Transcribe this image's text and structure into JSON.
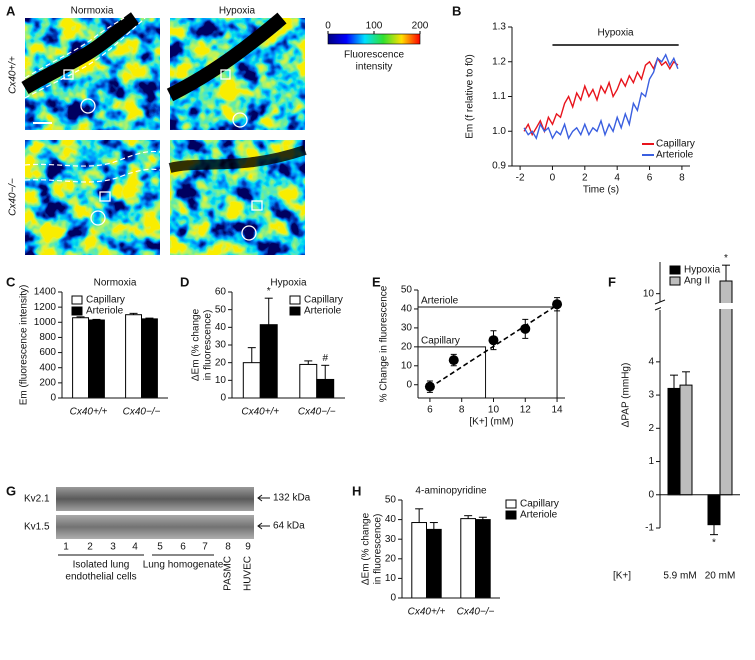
{
  "panel_labels": [
    "A",
    "B",
    "C",
    "D",
    "E",
    "F",
    "G",
    "H"
  ],
  "panel_a": {
    "columns": [
      "Normoxia",
      "Hypoxia"
    ],
    "rows": [
      "Cx40+/+",
      "Cx40−/−"
    ],
    "colorbar": {
      "label": [
        "Fluorescence",
        "intensity"
      ],
      "lim": [
        0,
        200
      ],
      "ticks": [
        0,
        100,
        200
      ]
    }
  },
  "panel_g": {
    "bands": [
      {
        "name": "Kv2.1",
        "size": "132 kDa"
      },
      {
        "name": "Kv1.5",
        "size": "64 kDa"
      }
    ],
    "lanes": [
      "1",
      "2",
      "3",
      "4",
      "5",
      "6",
      "7",
      "8",
      "9"
    ],
    "groups": [
      [
        "Isolated lung",
        "endothelial cells"
      ],
      [
        "Lung homogenate"
      ],
      [
        "PASMC"
      ],
      [
        "HUVEC"
      ]
    ]
  },
  "chart_data": [
    {
      "type": "line",
      "xlabel": "Time (s)",
      "ylabel": "Em (f relative to f0)",
      "annotation": {
        "text": "Hypoxia",
        "x_start": 0,
        "x_end": 7.8
      },
      "x": [
        -1.75,
        -1.5,
        -1.25,
        -1.0,
        -0.75,
        -0.5,
        -0.25,
        0,
        0.25,
        0.5,
        0.75,
        1.0,
        1.25,
        1.5,
        1.75,
        2.0,
        2.25,
        2.5,
        2.75,
        3.0,
        3.25,
        3.5,
        3.75,
        4.0,
        4.25,
        4.5,
        4.75,
        5.0,
        5.25,
        5.5,
        5.75,
        6.0,
        6.25,
        6.5,
        6.75,
        7.0,
        7.25,
        7.5,
        7.75
      ],
      "series": [
        {
          "name": "Capillary",
          "color": "#e8141c",
          "values": [
            1.0,
            1.02,
            0.99,
            1.01,
            1.03,
            1.0,
            1.04,
            1.02,
            1.05,
            1.04,
            1.08,
            1.1,
            1.07,
            1.11,
            1.09,
            1.13,
            1.1,
            1.12,
            1.09,
            1.13,
            1.11,
            1.14,
            1.1,
            1.12,
            1.15,
            1.13,
            1.16,
            1.14,
            1.17,
            1.15,
            1.19,
            1.2,
            1.18,
            1.21,
            1.19,
            1.2,
            1.18,
            1.2,
            1.19
          ]
        },
        {
          "name": "Arteriole",
          "color": "#3a5fe0",
          "values": [
            1.01,
            0.99,
            1.0,
            0.98,
            1.02,
            1.0,
            1.01,
            0.98,
            1.0,
            0.99,
            1.02,
            0.98,
            1.0,
            1.01,
            0.99,
            1.02,
            0.99,
            1.01,
            1.0,
            1.03,
            0.99,
            1.02,
            1.0,
            1.04,
            1.01,
            1.05,
            1.02,
            1.08,
            1.06,
            1.11,
            1.1,
            1.15,
            1.17,
            1.21,
            1.2,
            1.22,
            1.19,
            1.21,
            1.18
          ]
        }
      ],
      "xlim": [
        -2.5,
        8.5
      ],
      "xticks": [
        -2,
        0,
        2,
        4,
        6,
        8
      ],
      "ylim": [
        0.9,
        1.3
      ],
      "yticks": [
        0.9,
        {
          "value": 1,
          "label": "1.0"
        },
        1.1,
        1.2,
        1.3
      ],
      "legend": "lower right"
    },
    {
      "type": "bar",
      "title": "Normoxia",
      "ylabel": "Em (fluorescence intensity)",
      "categories": [
        "Cx40+/+",
        "Cx40−/−"
      ],
      "series": [
        {
          "name": "Capillary",
          "color": "#ffffff",
          "values": [
            1060,
            1100
          ],
          "errors": [
            12,
            18
          ]
        },
        {
          "name": "Arteriole",
          "color": "#000000",
          "values": [
            1030,
            1045
          ],
          "errors": [
            8,
            10
          ]
        }
      ],
      "ylim": [
        0,
        1400
      ],
      "yticks": [
        0,
        200,
        400,
        600,
        800,
        1000,
        1200,
        1400
      ],
      "legend": "upper left"
    },
    {
      "type": "bar",
      "title": "Hypoxia",
      "ylabel": [
        "ΔEm (% change",
        "in fluorescence)"
      ],
      "categories": [
        "Cx40+/+",
        "Cx40−/−"
      ],
      "series": [
        {
          "name": "Capillary",
          "color": "#ffffff",
          "values": [
            20,
            19
          ],
          "errors": [
            8.5,
            2
          ]
        },
        {
          "name": "Arteriole",
          "color": "#000000",
          "values": [
            41.5,
            10.5
          ],
          "errors": [
            15,
            8
          ]
        }
      ],
      "annotations": [
        {
          "text": "*",
          "series": 1,
          "category": 0
        },
        {
          "text": "#",
          "series": 1,
          "category": 1
        }
      ],
      "ylim": [
        0,
        60
      ],
      "yticks": [
        0,
        10,
        20,
        30,
        40,
        50,
        60
      ],
      "legend": "upper right"
    },
    {
      "type": "scatter",
      "xlabel": "[K+] (mM)",
      "ylabel": "% Change in fluorescence",
      "x": [
        6,
        7.5,
        10,
        12,
        14
      ],
      "values": [
        -1,
        13,
        23.5,
        29.5,
        42.5
      ],
      "errors": [
        3,
        3,
        5,
        5,
        3.5
      ],
      "color": "#000000",
      "fit": {
        "x": [
          6,
          14
        ],
        "y": [
          -1.5,
          42
        ]
      },
      "reference_lines": [
        {
          "label": "Arteriole",
          "x": 14,
          "y": 41
        },
        {
          "label": "Capillary",
          "x": 9.5,
          "y": 20
        }
      ],
      "xlim": [
        5.25,
        14.5
      ],
      "xticks": [
        6,
        8,
        10,
        12,
        14
      ],
      "ylim": [
        -7,
        50
      ],
      "yticks": [
        0,
        10,
        20,
        30,
        40,
        50
      ]
    },
    {
      "type": "bar",
      "ylabel": "ΔPAP (mmHg)",
      "category_axis_label": "[K+]",
      "categories": [
        "5.9 mM",
        "20 mM"
      ],
      "series": [
        {
          "name": "Hypoxia",
          "color": "#000000",
          "values": [
            3.2,
            -0.9
          ],
          "errors": [
            0.4,
            0.3
          ]
        },
        {
          "name": "Ang II",
          "color": "#bdbdbd",
          "values": [
            3.3,
            14
          ],
          "errors": [
            0.4,
            5
          ]
        }
      ],
      "annotations": [
        {
          "text": "*",
          "series": 0,
          "category": 1
        },
        {
          "text": "*",
          "series": 1,
          "category": 1
        }
      ],
      "ylim": [
        -1,
        20
      ],
      "yticks": [
        -1,
        0,
        1,
        2,
        3,
        4,
        10
      ],
      "axis_break": [
        5.5,
        8
      ],
      "legend": "upper left"
    },
    {
      "type": "bar",
      "title": "4-aminopyridine",
      "ylabel": [
        "ΔEm (% change",
        "in fluorescence)"
      ],
      "categories": [
        "Cx40+/+",
        "Cx40−/−"
      ],
      "series": [
        {
          "name": "Capillary",
          "color": "#ffffff",
          "values": [
            38.5,
            40.5
          ],
          "errors": [
            7,
            1.5
          ]
        },
        {
          "name": "Arteriole",
          "color": "#000000",
          "values": [
            35,
            40
          ],
          "errors": [
            3.5,
            1.2
          ]
        }
      ],
      "ylim": [
        0,
        50
      ],
      "yticks": [
        0,
        10,
        20,
        30,
        40,
        50
      ],
      "legend": "outside right"
    }
  ]
}
